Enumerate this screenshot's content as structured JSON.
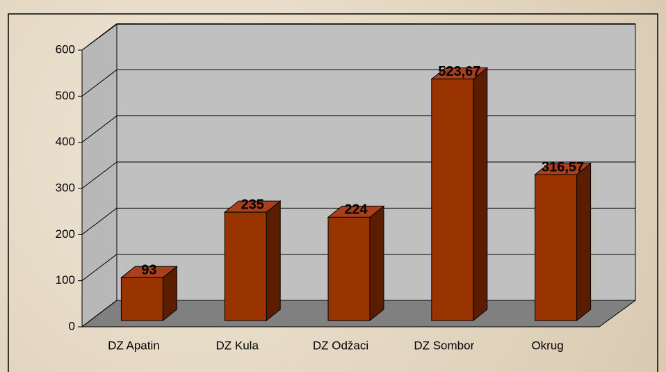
{
  "chart_data": {
    "type": "bar",
    "categories": [
      "DZ Apatin",
      "DZ Kula",
      "DZ Odžaci",
      "DZ Sombor",
      "Okrug"
    ],
    "values": [
      93,
      235,
      224,
      523.67,
      316.57
    ],
    "value_labels": [
      "93",
      "235",
      "224",
      "523,67",
      "316,57"
    ],
    "color": "#993300",
    "ylim": [
      0,
      600
    ],
    "yticks": [
      0,
      100,
      200,
      300,
      400,
      500,
      600
    ],
    "grid": true
  }
}
